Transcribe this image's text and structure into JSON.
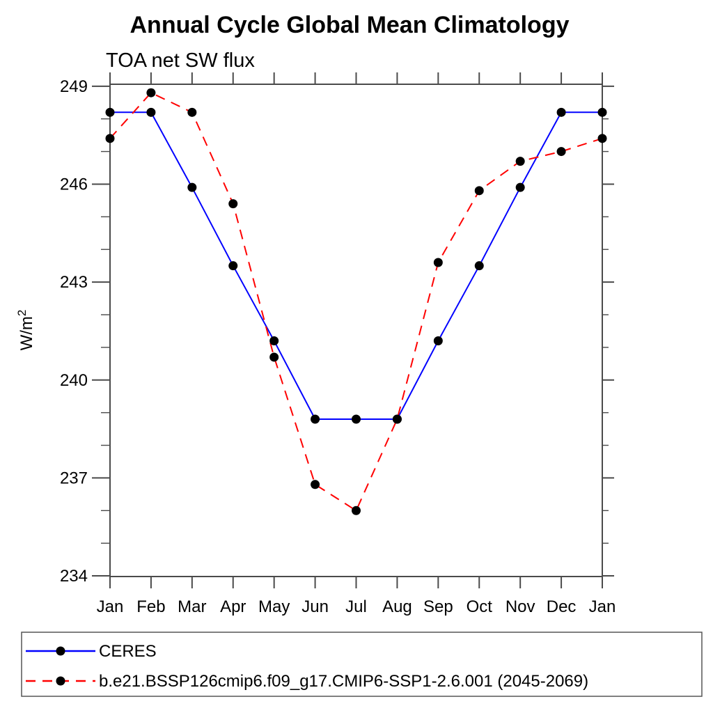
{
  "chart_data": {
    "type": "line",
    "title": "Annual Cycle Global Mean Climatology",
    "subtitle": "TOA net SW flux",
    "ylabel": "W/m²",
    "ylabel_base": "W/m",
    "ylabel_exp": "2",
    "categories": [
      "Jan",
      "Feb",
      "Mar",
      "Apr",
      "May",
      "Jun",
      "Jul",
      "Aug",
      "Sep",
      "Oct",
      "Nov",
      "Dec",
      "Jan"
    ],
    "yticks": [
      249,
      246,
      243,
      240,
      237,
      234
    ],
    "minor_tick_step": 1,
    "ylim": [
      233.98,
      249.06
    ],
    "grid": false,
    "legend_position": "bottom",
    "axis_color": "#4a4a4a",
    "marker_color": "#000000",
    "series": [
      {
        "name": "CERES",
        "color": "#0000ff",
        "style": "solid",
        "marker": "circle",
        "values": [
          248.2,
          248.2,
          245.9,
          243.5,
          241.2,
          238.8,
          238.8,
          238.8,
          241.2,
          243.5,
          245.9,
          248.2,
          248.2
        ]
      },
      {
        "name": "b.e21.BSSP126cmip6.f09_g17.CMIP6-SSP1-2.6.001 (2045-2069)",
        "color": "#ff0000",
        "style": "dashed",
        "marker": "circle",
        "values": [
          247.4,
          248.8,
          248.2,
          245.4,
          240.7,
          236.8,
          236.0,
          238.8,
          243.6,
          245.8,
          246.7,
          247.0,
          247.4
        ]
      }
    ]
  }
}
